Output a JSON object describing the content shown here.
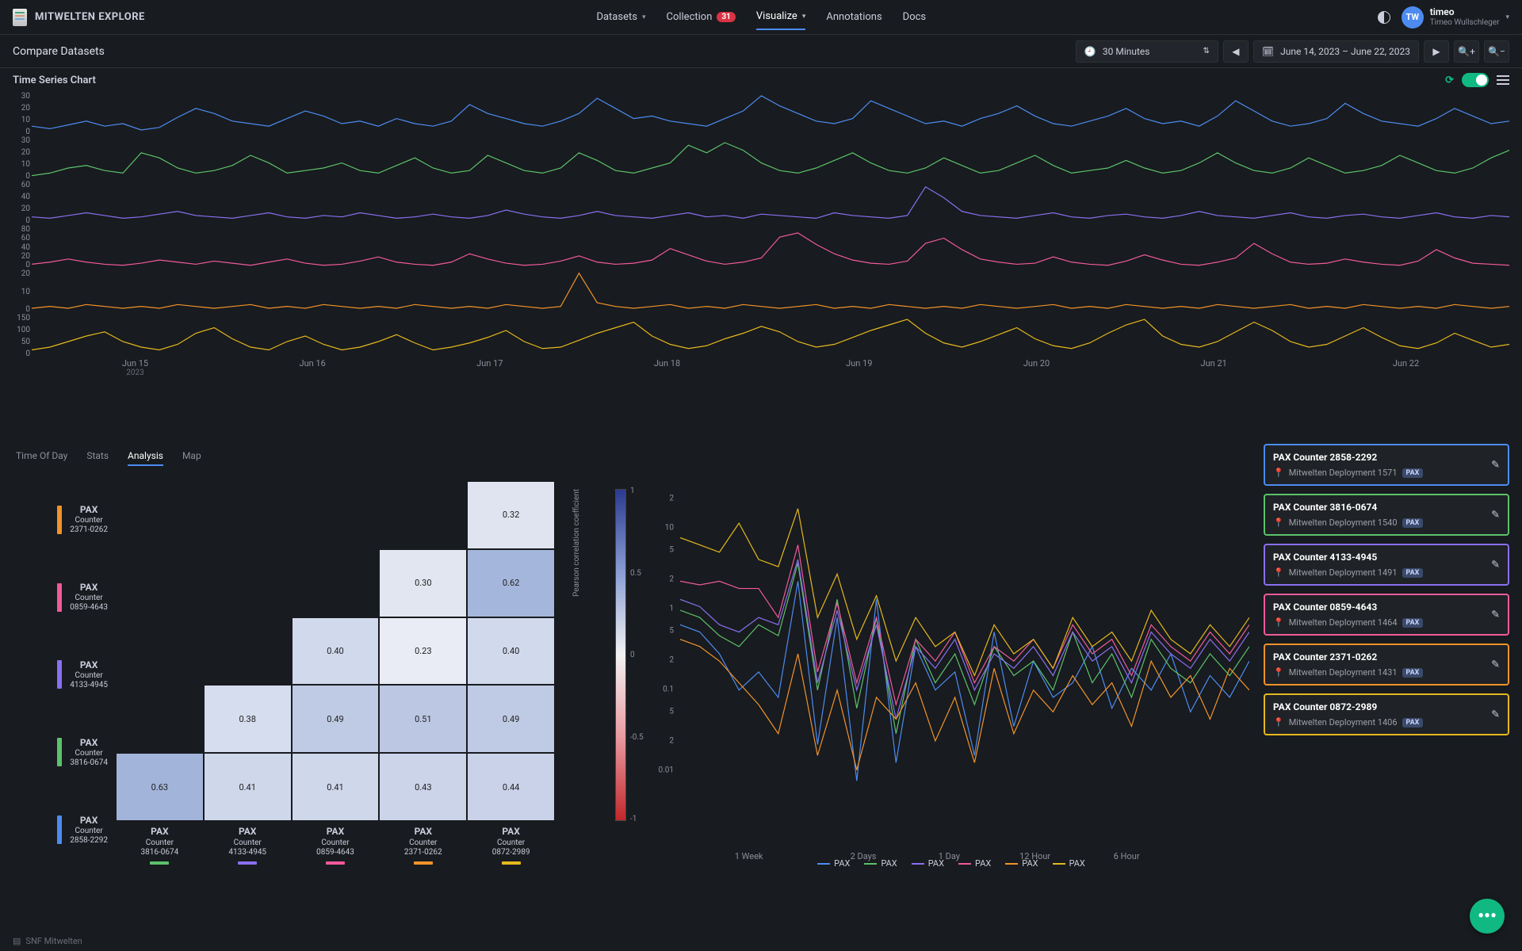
{
  "brand": "MITWELTEN EXPLORE",
  "nav": {
    "datasets": "Datasets",
    "collection": "Collection",
    "collection_badge": "31",
    "visualize": "Visualize",
    "annotations": "Annotations",
    "docs": "Docs"
  },
  "user": {
    "initials": "TW",
    "name": "timeo",
    "full": "Timeo Wullschleger"
  },
  "subbar": {
    "title": "Compare Datasets",
    "interval": "30 Minutes",
    "daterange": "June 14, 2023 – June 22, 2023"
  },
  "section_title": "Time Series Chart",
  "timeseries": {
    "xTicks": [
      {
        "pct": 7,
        "label": "Jun 15",
        "sub": "2023"
      },
      {
        "pct": 19,
        "label": "Jun 16"
      },
      {
        "pct": 31,
        "label": "Jun 17"
      },
      {
        "pct": 43,
        "label": "Jun 18"
      },
      {
        "pct": 56,
        "label": "Jun 19"
      },
      {
        "pct": 68,
        "label": "Jun 20"
      },
      {
        "pct": 80,
        "label": "Jun 21"
      },
      {
        "pct": 93,
        "label": "Jun 22"
      }
    ],
    "rows": [
      {
        "color": "#4d8bf0",
        "yticks": [
          "30",
          "20",
          "10",
          "0"
        ],
        "ymax": 35,
        "data": [
          8,
          6,
          9,
          12,
          8,
          10,
          5,
          7,
          15,
          22,
          18,
          12,
          10,
          8,
          14,
          20,
          16,
          10,
          12,
          8,
          14,
          10,
          8,
          12,
          25,
          18,
          14,
          10,
          8,
          12,
          18,
          30,
          22,
          14,
          16,
          12,
          10,
          8,
          14,
          20,
          32,
          24,
          18,
          12,
          10,
          14,
          28,
          22,
          16,
          10,
          12,
          8,
          14,
          18,
          24,
          16,
          10,
          8,
          12,
          16,
          22,
          14,
          10,
          12,
          8,
          16,
          28,
          20,
          12,
          8,
          10,
          14,
          26,
          18,
          12,
          10,
          8,
          14,
          22,
          16,
          10,
          12
        ]
      },
      {
        "color": "#5cc26a",
        "yticks": [
          "30",
          "20",
          "10",
          "0"
        ],
        "ymax": 35,
        "data": [
          4,
          6,
          10,
          12,
          8,
          6,
          22,
          18,
          10,
          6,
          8,
          12,
          20,
          14,
          6,
          8,
          10,
          14,
          8,
          6,
          12,
          18,
          10,
          6,
          8,
          20,
          14,
          8,
          6,
          10,
          22,
          16,
          8,
          6,
          10,
          14,
          28,
          22,
          30,
          24,
          14,
          8,
          6,
          10,
          16,
          22,
          14,
          8,
          6,
          10,
          18,
          12,
          6,
          8,
          14,
          20,
          12,
          6,
          8,
          10,
          16,
          10,
          6,
          8,
          14,
          22,
          14,
          8,
          6,
          10,
          18,
          12,
          6,
          8,
          12,
          20,
          14,
          8,
          6,
          10,
          18,
          24
        ]
      },
      {
        "color": "#8a6ff0",
        "yticks": [
          "60",
          "40",
          "20",
          "0"
        ],
        "ymax": 65,
        "data": [
          12,
          10,
          14,
          18,
          14,
          10,
          12,
          16,
          20,
          14,
          12,
          10,
          14,
          18,
          12,
          10,
          14,
          12,
          18,
          14,
          10,
          12,
          16,
          12,
          10,
          14,
          22,
          16,
          12,
          10,
          14,
          20,
          14,
          12,
          10,
          14,
          18,
          12,
          14,
          10,
          16,
          14,
          12,
          10,
          18,
          14,
          12,
          10,
          14,
          56,
          40,
          20,
          14,
          12,
          10,
          14,
          18,
          12,
          10,
          14,
          16,
          12,
          10,
          14,
          20,
          14,
          12,
          10,
          14,
          18,
          12,
          10,
          14,
          16,
          12,
          10,
          14,
          18,
          12,
          10,
          14,
          12
        ]
      },
      {
        "color": "#f05a9b",
        "yticks": [
          "80",
          "60",
          "40",
          "20",
          "0"
        ],
        "ymax": 85,
        "data": [
          10,
          14,
          20,
          14,
          10,
          8,
          12,
          18,
          14,
          10,
          16,
          12,
          8,
          14,
          20,
          12,
          8,
          10,
          16,
          24,
          14,
          10,
          8,
          14,
          30,
          20,
          12,
          8,
          10,
          16,
          26,
          14,
          10,
          12,
          18,
          40,
          28,
          16,
          10,
          14,
          22,
          62,
          70,
          48,
          30,
          18,
          12,
          10,
          16,
          50,
          60,
          38,
          20,
          14,
          10,
          12,
          24,
          14,
          10,
          8,
          16,
          28,
          18,
          10,
          8,
          14,
          22,
          50,
          30,
          14,
          10,
          12,
          20,
          14,
          10,
          8,
          16,
          38,
          22,
          12,
          10,
          8
        ]
      },
      {
        "color": "#f0932b",
        "yticks": [
          "20",
          "10",
          "0"
        ],
        "ymax": 24,
        "data": [
          3,
          4,
          3,
          5,
          4,
          3,
          4,
          3,
          5,
          4,
          3,
          4,
          5,
          3,
          4,
          3,
          5,
          4,
          3,
          4,
          3,
          5,
          4,
          3,
          4,
          3,
          5,
          4,
          3,
          4,
          22,
          6,
          4,
          3,
          4,
          5,
          3,
          4,
          3,
          5,
          4,
          3,
          4,
          5,
          3,
          4,
          3,
          5,
          4,
          3,
          4,
          3,
          5,
          4,
          3,
          4,
          5,
          3,
          4,
          3,
          5,
          4,
          3,
          4,
          3,
          5,
          4,
          3,
          4,
          5,
          3,
          4,
          3,
          5,
          4,
          3,
          4,
          3,
          5,
          4,
          3,
          4
        ]
      },
      {
        "color": "#e5b81f",
        "yticks": [
          "150",
          "100",
          "50",
          "0"
        ],
        "ymax": 160,
        "data": [
          30,
          40,
          60,
          80,
          95,
          60,
          40,
          30,
          50,
          90,
          110,
          70,
          40,
          30,
          60,
          80,
          50,
          30,
          40,
          60,
          85,
          55,
          30,
          40,
          55,
          75,
          100,
          60,
          35,
          40,
          65,
          90,
          110,
          130,
          80,
          50,
          35,
          45,
          70,
          90,
          115,
          95,
          60,
          40,
          50,
          75,
          100,
          120,
          140,
          90,
          55,
          40,
          60,
          85,
          110,
          70,
          45,
          35,
          55,
          90,
          120,
          140,
          80,
          50,
          40,
          60,
          95,
          130,
          100,
          60,
          40,
          50,
          80,
          110,
          75,
          45,
          35,
          55,
          90,
          65,
          40,
          50
        ]
      }
    ]
  },
  "tabs": [
    "Time Of Day",
    "Stats",
    "Analysis",
    "Map"
  ],
  "active_tab": "Analysis",
  "heatmap": {
    "yLabels": [
      {
        "color": "#f0932b",
        "l1": "PAX",
        "l2": "Counter",
        "l3": "2371-0262"
      },
      {
        "color": "#f05a9b",
        "l1": "PAX",
        "l2": "Counter",
        "l3": "0859-4643"
      },
      {
        "color": "#8a6ff0",
        "l1": "PAX",
        "l2": "Counter",
        "l3": "4133-4945"
      },
      {
        "color": "#5cc26a",
        "l1": "PAX",
        "l2": "Counter",
        "l3": "3816-0674"
      },
      {
        "color": "#4d8bf0",
        "l1": "PAX",
        "l2": "Counter",
        "l3": "2858-2292"
      }
    ],
    "xLabels": [
      {
        "color": "#5cc26a",
        "l1": "PAX",
        "l2": "Counter",
        "l3": "3816-0674"
      },
      {
        "color": "#8a6ff0",
        "l1": "PAX",
        "l2": "Counter",
        "l3": "4133-4945"
      },
      {
        "color": "#f05a9b",
        "l1": "PAX",
        "l2": "Counter",
        "l3": "0859-4643"
      },
      {
        "color": "#f0932b",
        "l1": "PAX",
        "l2": "Counter",
        "l3": "2371-0262"
      },
      {
        "color": "#e5b81f",
        "l1": "PAX",
        "l2": "Counter",
        "l3": "0872-2989"
      }
    ],
    "cells": [
      [
        null,
        null,
        null,
        null,
        0.32
      ],
      [
        null,
        null,
        null,
        0.3,
        0.62
      ],
      [
        null,
        null,
        0.4,
        0.23,
        0.4
      ],
      [
        null,
        0.38,
        0.49,
        0.51,
        0.49
      ],
      [
        0.63,
        0.41,
        0.41,
        0.43,
        0.44
      ]
    ],
    "colorbar_label": "Pearson correlation coefficient",
    "colorbar_ticks": [
      "1",
      "0.5",
      "0",
      "-0.5",
      "-1"
    ],
    "cell_colors": {
      "0.23": "#e9ecf4",
      "0.30": "#e2e6f1",
      "0.32": "#dfe4f0",
      "0.38": "#d6ddee",
      "0.40": "#d1d9ec",
      "0.41": "#cfd7eb",
      "0.43": "#cbd4e9",
      "0.44": "#c9d2e8",
      "0.49": "#bfcae4",
      "0.51": "#bbc7e3",
      "0.62": "#a4b6db",
      "0.63": "#a2b4da"
    }
  },
  "fft": {
    "yTicks": [
      {
        "val": "2",
        "pct": 8
      },
      {
        "val": "10",
        "pct": 16
      },
      {
        "val": "5",
        "pct": 22
      },
      {
        "val": "2",
        "pct": 30
      },
      {
        "val": "1",
        "pct": 38
      },
      {
        "val": "5",
        "pct": 44
      },
      {
        "val": "2",
        "pct": 52
      },
      {
        "val": "0.1",
        "pct": 60
      },
      {
        "val": "5",
        "pct": 66
      },
      {
        "val": "2",
        "pct": 74
      },
      {
        "val": "0.01",
        "pct": 82
      }
    ],
    "xTicks": [
      {
        "label": "1 Week",
        "pct": 12
      },
      {
        "label": "2 Days",
        "pct": 32
      },
      {
        "label": "1 Day",
        "pct": 47
      },
      {
        "label": "12 Hour",
        "pct": 62
      },
      {
        "label": "6 Hour",
        "pct": 78
      }
    ],
    "legend": [
      "PAX",
      "PAX",
      "PAX",
      "PAX",
      "PAX",
      "PAX"
    ],
    "legend_colors": [
      "#4d8bf0",
      "#5cc26a",
      "#8a6ff0",
      "#f05a9b",
      "#f0932b",
      "#e5b81f"
    ],
    "series": [
      {
        "color": "#4d8bf0",
        "data": [
          42,
          44,
          50,
          60,
          55,
          62,
          30,
          75,
          40,
          85,
          35,
          80,
          48,
          60,
          55,
          78,
          44,
          70,
          52,
          62,
          58,
          48,
          65,
          54,
          60,
          50,
          66,
          56,
          62,
          52
        ]
      },
      {
        "color": "#5cc26a",
        "data": [
          38,
          40,
          45,
          48,
          42,
          45,
          25,
          60,
          35,
          65,
          40,
          72,
          46,
          58,
          50,
          64,
          48,
          56,
          52,
          60,
          44,
          58,
          50,
          62,
          46,
          54,
          58,
          50,
          56,
          48
        ]
      },
      {
        "color": "#8a6ff0",
        "data": [
          35,
          37,
          42,
          44,
          40,
          42,
          24,
          58,
          38,
          60,
          42,
          68,
          48,
          54,
          46,
          60,
          50,
          54,
          48,
          56,
          44,
          52,
          48,
          58,
          44,
          50,
          54,
          46,
          52,
          44
        ]
      },
      {
        "color": "#f05a9b",
        "data": [
          30,
          31,
          30,
          32,
          32,
          40,
          20,
          55,
          36,
          58,
          40,
          64,
          46,
          52,
          44,
          58,
          48,
          52,
          46,
          54,
          42,
          50,
          46,
          56,
          42,
          48,
          52,
          44,
          50,
          42
        ]
      },
      {
        "color": "#f0932b",
        "data": [
          46,
          48,
          52,
          58,
          64,
          72,
          50,
          78,
          60,
          82,
          62,
          68,
          58,
          74,
          62,
          80,
          54,
          72,
          60,
          66,
          56,
          64,
          58,
          70,
          52,
          62,
          56,
          68,
          54,
          60
        ]
      },
      {
        "color": "#e5b81f",
        "data": [
          18,
          20,
          22,
          14,
          24,
          26,
          10,
          40,
          28,
          46,
          34,
          52,
          40,
          48,
          44,
          56,
          42,
          50,
          46,
          54,
          40,
          48,
          44,
          52,
          38,
          46,
          50,
          42,
          48,
          40
        ]
      }
    ]
  },
  "datasets": [
    {
      "color": "#4d8bf0",
      "title": "PAX Counter 2858-2292",
      "sub": "Mitwelten Deployment 1571",
      "tag": "PAX"
    },
    {
      "color": "#5cc26a",
      "title": "PAX Counter 3816-0674",
      "sub": "Mitwelten Deployment 1540",
      "tag": "PAX"
    },
    {
      "color": "#8a6ff0",
      "title": "PAX Counter 4133-4945",
      "sub": "Mitwelten Deployment 1491",
      "tag": "PAX"
    },
    {
      "color": "#f05a9b",
      "title": "PAX Counter 0859-4643",
      "sub": "Mitwelten Deployment 1464",
      "tag": "PAX"
    },
    {
      "color": "#f0932b",
      "title": "PAX Counter 2371-0262",
      "sub": "Mitwelten Deployment 1431",
      "tag": "PAX"
    },
    {
      "color": "#e5b81f",
      "title": "PAX Counter 0872-2989",
      "sub": "Mitwelten Deployment 1406",
      "tag": "PAX"
    }
  ],
  "footer": "SNF Mitwelten",
  "fab": "•••"
}
